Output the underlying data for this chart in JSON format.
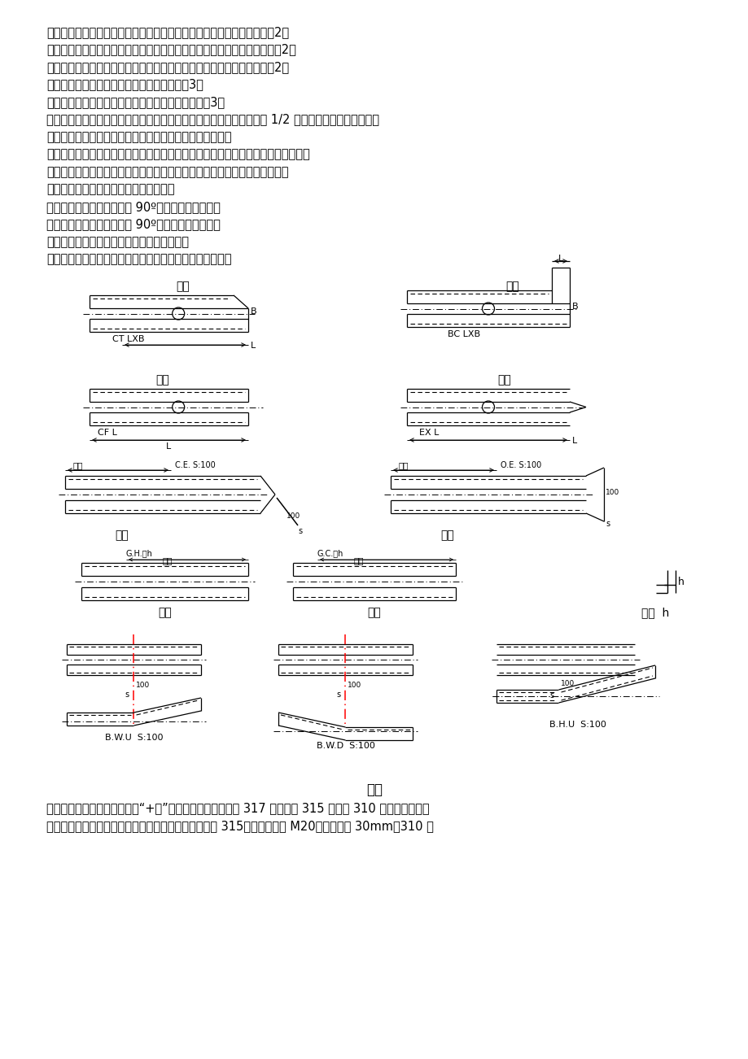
{
  "bg_color": "#ffffff",
  "paragraphs": [
    "心距：在角钓肢平面内，樹线与心线之间的垂直距离，又叫准距。（见图2）",
    "间距：在角钓肢平面内，同一准线上相邻两螺栓孔中心之间的距离。（见图2）",
    "端距：在角钓肢平面内，角钓端头与首个螺栓孔中心之间的距离。（见图2）",
    "轧制边距：准线与轧制边之间的距离。（见图3）",
    "切角边距：螺栓孔中心与切角边之间的距离。（见图3）",
    "重心线：角钓两个截面的重力作用点的连线就是重心线，一般认为角钓 1/2 准线处即为其近似重心线。",
    "切角：为防止角钓碰撞，将角钓端头一肢切去一角的工艺。",
    "切肢：在角钓端头处，两肢同时被一平面切割形成的缺口或一肢被整个切去的工艺。",
    "制弯：把角钓或板进行弯曲处理的工艺。分冷弯和热弯，热弯又称之为火曲。",
    "压扁：把角钓某处两肢压在一起的工艺。",
    "开角：使角钓两肢夹角大于 90º的工艺，又叫开肢。",
    "合角：使角钓两肢夹角小于 90º的工艺，又叫合肢。",
    "钓背：去除角钓外槳直角的工艺，又叫钓棱。",
    "清根：去除角钓内圆弧变为直角的工艺，又叫钓心或去弧。"
  ],
  "footer_title": "火曲",
  "footer_line1": "正头：在图纸中，标注角钓为“+数”，就为正头（如下图中 317 角钓，注 315 角钓与 310 角钓也为正头，",
  "footer_line2": "因为是常规不进行标注，它们这时的正头是标准端距如 315＃角钓螺栓为 M20，则正头为 30mm，310 角"
}
